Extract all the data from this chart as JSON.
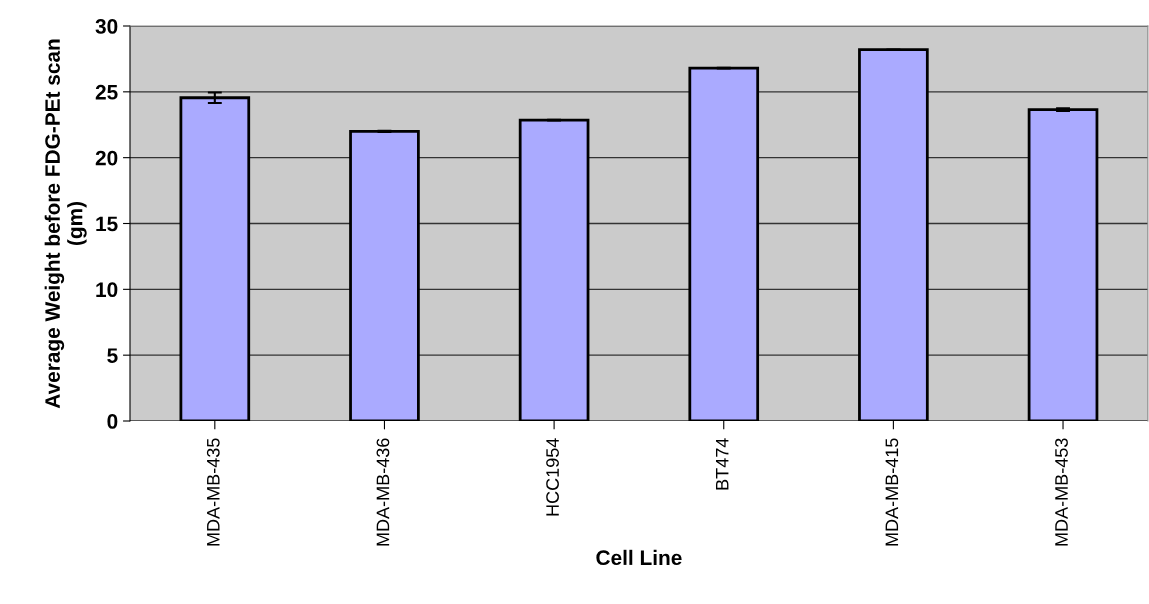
{
  "chart_data": {
    "type": "bar",
    "xlabel": "Cell Line",
    "ylabel": "Average Weight before FDG-PEt scan\n(gm)",
    "categories": [
      "MDA-MB-435",
      "MDA-MB-436",
      "HCC1954",
      "BT474",
      "MDA-MB-415",
      "MDA-MB-453"
    ],
    "values": [
      24.55,
      22.0,
      22.85,
      26.8,
      28.2,
      23.65
    ],
    "errors": [
      0.4,
      0.05,
      0.03,
      0.03,
      null,
      0.1
    ],
    "color": "#aaaaff",
    "ylim": [
      0,
      30
    ],
    "yticks": [
      0,
      5,
      10,
      15,
      20,
      25,
      30
    ],
    "grid": "y"
  }
}
